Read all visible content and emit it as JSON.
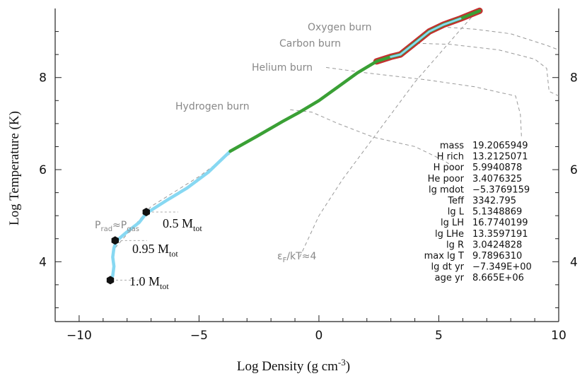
{
  "chart_data": {
    "type": "line",
    "xlabel_main": "Log Density (g cm",
    "xlabel_sup": "-3",
    "xlabel_tail": ")",
    "ylabel": "Log Temperature (K)",
    "xlim": [
      -11,
      10
    ],
    "ylim": [
      2.7,
      9.5
    ],
    "x_ticks": [
      -10,
      -5,
      0,
      5,
      10
    ],
    "x_tick_labels": [
      "−10",
      "−5",
      "0",
      "5",
      "10"
    ],
    "y_ticks": [
      4,
      6,
      8
    ],
    "y_tick_labels": [
      "4",
      "6",
      "8"
    ],
    "series": [
      {
        "name": "profile-outer",
        "color": "#87d8f2",
        "values": [
          [
            -8.7,
            3.55
          ],
          [
            -8.6,
            3.7
          ],
          [
            -8.55,
            3.9
          ],
          [
            -8.6,
            4.1
          ],
          [
            -8.55,
            4.3
          ],
          [
            -8.45,
            4.45
          ],
          [
            -8.0,
            4.65
          ],
          [
            -7.5,
            4.85
          ],
          [
            -7.2,
            5.05
          ],
          [
            -6.3,
            5.35
          ],
          [
            -5.5,
            5.6
          ],
          [
            -4.6,
            5.95
          ],
          [
            -3.7,
            6.4
          ]
        ]
      },
      {
        "name": "profile-inner",
        "color": "#3aa035",
        "values": [
          [
            -3.7,
            6.4
          ],
          [
            -2.6,
            6.72
          ],
          [
            -1.5,
            7.05
          ],
          [
            -0.8,
            7.25
          ],
          [
            0.0,
            7.5
          ],
          [
            0.8,
            7.8
          ],
          [
            1.6,
            8.1
          ],
          [
            2.4,
            8.35
          ],
          [
            3.0,
            8.45
          ],
          [
            3.4,
            8.5
          ],
          [
            4.0,
            8.75
          ],
          [
            4.6,
            9.0
          ],
          [
            5.2,
            9.15
          ],
          [
            5.9,
            9.28
          ],
          [
            6.7,
            9.45
          ]
        ]
      }
    ],
    "burn_lines": [
      {
        "name": "Oxygen burn",
        "label": "Oxygen burn",
        "values": [
          [
            5.1,
            9.1
          ],
          [
            6.5,
            9.05
          ],
          [
            8.0,
            8.95
          ],
          [
            9.5,
            8.7
          ],
          [
            10.0,
            8.6
          ]
        ]
      },
      {
        "name": "Carbon burn",
        "label": "Carbon burn",
        "values": [
          [
            3.8,
            8.75
          ],
          [
            5.5,
            8.72
          ],
          [
            7.5,
            8.6
          ],
          [
            9.0,
            8.4
          ],
          [
            9.5,
            8.2
          ],
          [
            9.6,
            7.7
          ],
          [
            10.0,
            7.6
          ]
        ]
      },
      {
        "name": "Helium burn",
        "label": "Helium burn",
        "values": [
          [
            0.3,
            8.22
          ],
          [
            2.0,
            8.1
          ],
          [
            4.5,
            7.95
          ],
          [
            6.5,
            7.8
          ],
          [
            8.2,
            7.6
          ],
          [
            8.4,
            7.2
          ],
          [
            8.45,
            6.7
          ]
        ]
      },
      {
        "name": "Hydrogen burn",
        "label": "Hydrogen burn",
        "values": [
          [
            -1.2,
            7.3
          ],
          [
            -0.3,
            7.25
          ],
          [
            0.8,
            7.0
          ],
          [
            2.3,
            6.7
          ],
          [
            4.0,
            6.5
          ],
          [
            5.2,
            6.2
          ],
          [
            5.8,
            6.0
          ]
        ]
      },
      {
        "name": "Prad Pgas",
        "label": "",
        "values": [
          [
            -8.5,
            4.3
          ],
          [
            -8.0,
            4.6
          ],
          [
            -7.0,
            5.2
          ],
          [
            -5.0,
            5.85
          ],
          [
            -3.7,
            6.35
          ]
        ]
      },
      {
        "name": "degeneracy",
        "label": "",
        "values": [
          [
            -0.8,
            4.1
          ],
          [
            0.0,
            5.0
          ],
          [
            1.0,
            5.8
          ],
          [
            2.0,
            6.5
          ],
          [
            3.0,
            7.2
          ],
          [
            4.0,
            7.9
          ],
          [
            5.0,
            8.5
          ],
          [
            6.0,
            9.1
          ],
          [
            6.7,
            9.5
          ]
        ]
      }
    ],
    "annotations": {
      "prad_main": "P",
      "prad_sub": "rad",
      "approx": "≈",
      "pgas_main": "P",
      "pgas_sub": "gas",
      "eps_main": "ε",
      "eps_sub": "F",
      "eps_tail": "/kT≈4"
    },
    "mass_markers": [
      {
        "x": -7.2,
        "y": 5.08,
        "label_main": "0.5 M",
        "label_sub": "tot"
      },
      {
        "x": -8.5,
        "y": 4.46,
        "label_main": "0.95 M",
        "label_sub": "tot"
      },
      {
        "x": -8.7,
        "y": 3.6,
        "label_main": "1.0 M",
        "label_sub": "tot"
      }
    ],
    "info_table": [
      {
        "key": "mass",
        "value": "19.2065949"
      },
      {
        "key": "H rich",
        "value": "13.2125071"
      },
      {
        "key": "H poor",
        "value": "5.9940878"
      },
      {
        "key": "He poor",
        "value": "3.4076325"
      },
      {
        "key": "lg mdot",
        "value": "−5.3769159"
      },
      {
        "key": "Teff",
        "value": "3342.795"
      },
      {
        "key": "lg L",
        "value": "5.1348869"
      },
      {
        "key": "lg LH",
        "value": "16.7740199"
      },
      {
        "key": "lg LHe",
        "value": "13.3597191"
      },
      {
        "key": "lg R",
        "value": "3.0424828"
      },
      {
        "key": "max lg T",
        "value": "9.7896310"
      },
      {
        "key": "lg dt yr",
        "value": "−7.349E+00"
      },
      {
        "key": "age yr",
        "value": "8.665E+06"
      }
    ]
  }
}
